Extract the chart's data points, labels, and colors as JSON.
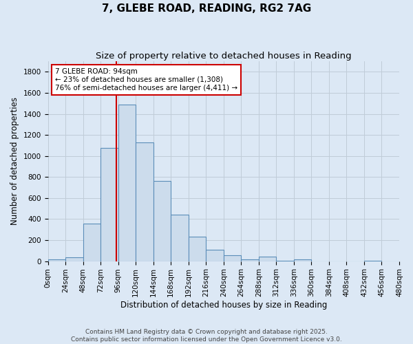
{
  "title": "7, GLEBE ROAD, READING, RG2 7AG",
  "subtitle": "Size of property relative to detached houses in Reading",
  "xlabel": "Distribution of detached houses by size in Reading",
  "ylabel": "Number of detached properties",
  "bin_edges": [
    0,
    24,
    48,
    72,
    96,
    120,
    144,
    168,
    192,
    216,
    240,
    264,
    288,
    312,
    336,
    360,
    384,
    408,
    432,
    456,
    480
  ],
  "bar_heights": [
    15,
    35,
    355,
    1075,
    1490,
    1130,
    760,
    440,
    230,
    110,
    55,
    20,
    45,
    5,
    15,
    0,
    0,
    0,
    5,
    0
  ],
  "bar_color": "#ccdcec",
  "bar_edge_color": "#5b8db8",
  "property_size": 94,
  "vline_color": "#cc0000",
  "annotation_line1": "7 GLEBE ROAD: 94sqm",
  "annotation_line2": "← 23% of detached houses are smaller (1,308)",
  "annotation_line3": "76% of semi-detached houses are larger (4,411) →",
  "annotation_box_facecolor": "#ffffff",
  "annotation_box_edgecolor": "#cc0000",
  "ylim": [
    0,
    1900
  ],
  "yticks": [
    0,
    200,
    400,
    600,
    800,
    1000,
    1200,
    1400,
    1600,
    1800
  ],
  "footer_line1": "Contains HM Land Registry data © Crown copyright and database right 2025.",
  "footer_line2": "Contains public sector information licensed under the Open Government Licence v3.0.",
  "background_color": "#dce8f5",
  "plot_background_color": "#dce8f5",
  "grid_color": "#c0ccd8",
  "title_fontsize": 11,
  "subtitle_fontsize": 9.5,
  "axis_label_fontsize": 8.5,
  "tick_fontsize": 7.5,
  "annotation_fontsize": 7.5,
  "footer_fontsize": 6.5
}
